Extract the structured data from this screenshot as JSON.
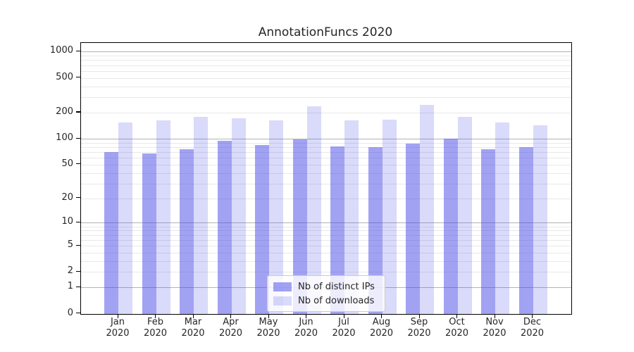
{
  "title": "AnnotationFuncs 2020",
  "chart_data": {
    "type": "bar",
    "title": "AnnotationFuncs 2020",
    "categories": [
      "Jan",
      "Feb",
      "Mar",
      "Apr",
      "May",
      "Jun",
      "Jul",
      "Aug",
      "Sep",
      "Oct",
      "Nov",
      "Dec"
    ],
    "x_year_label": "2020",
    "series": [
      {
        "name": "Nb of distinct IPs",
        "color": "rgba(70,70,232,0.5)",
        "values": [
          70,
          68,
          75,
          94,
          85,
          98,
          82,
          80,
          87,
          100,
          75,
          80
        ]
      },
      {
        "name": "Nb of downloads",
        "color": "rgba(70,70,232,0.2)",
        "values": [
          155,
          162,
          180,
          172,
          163,
          236,
          163,
          167,
          244,
          178,
          155,
          142
        ]
      }
    ],
    "xlabel": "",
    "ylabel": "",
    "yaxis": {
      "scale": "log10(1+v)",
      "tick_values": [
        0,
        1,
        2,
        5,
        10,
        20,
        50,
        100,
        200,
        500,
        1000
      ],
      "tick_labels": [
        "0",
        "1",
        "2",
        "5",
        "10",
        "20",
        "50",
        "100",
        "200",
        "500",
        "1000"
      ],
      "major_grid_values": [
        1,
        10,
        100,
        1000
      ],
      "minor_grid_values": [
        2,
        3,
        4,
        5,
        6,
        7,
        8,
        9,
        20,
        30,
        40,
        50,
        60,
        70,
        80,
        90,
        200,
        300,
        400,
        500,
        600,
        700,
        800,
        900
      ],
      "ylim": [
        0,
        1260
      ]
    },
    "grid": true,
    "legend_position": "inside-lower-center"
  },
  "legend": {
    "items": [
      {
        "label": "Nb of distinct IPs",
        "color": "rgba(70,70,232,0.5)"
      },
      {
        "label": "Nb of downloads",
        "color": "rgba(70,70,232,0.2)"
      }
    ]
  },
  "colors": {
    "bar_base": "#4646e8",
    "bar_distinct_ips": "rgba(70,70,232,0.5)",
    "bar_downloads": "rgba(70,70,232,0.2)",
    "grid_major": "#b3b3b3",
    "grid_minor": "#e8e8e8",
    "spine": "#000000",
    "text": "#262626",
    "legend_border": "#cccccc",
    "legend_background": "rgba(255,255,255,0.8)"
  }
}
